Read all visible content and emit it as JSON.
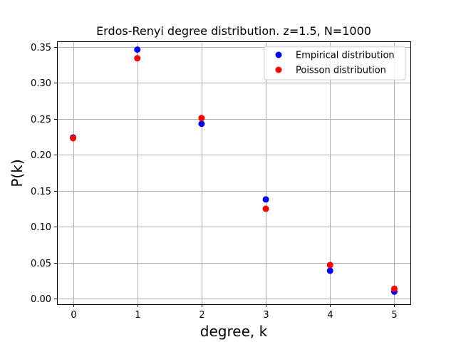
{
  "chart_data": {
    "type": "scatter",
    "title": "Erdos-Renyi degree distribution. z=1.5, N=1000",
    "xlabel": "degree, k",
    "ylabel": "P(k)",
    "x": [
      0,
      1,
      2,
      3,
      4,
      5
    ],
    "xlim": [
      -0.25,
      5.25
    ],
    "ylim": [
      -0.0075,
      0.3575
    ],
    "xticks": [
      0,
      1,
      2,
      3,
      4,
      5
    ],
    "yticks": [
      0.0,
      0.05,
      0.1,
      0.15,
      0.2,
      0.25,
      0.3,
      0.35
    ],
    "xtick_labels": [
      "0",
      "1",
      "2",
      "3",
      "4",
      "5"
    ],
    "ytick_labels": [
      "0.00",
      "0.05",
      "0.10",
      "0.15",
      "0.20",
      "0.25",
      "0.30",
      "0.35"
    ],
    "grid": true,
    "legend_position": "top-right",
    "series": [
      {
        "name": "Empirical distribution",
        "color": "#0000ff",
        "values": [
          0.224,
          0.346,
          0.243,
          0.138,
          0.039,
          0.01
        ]
      },
      {
        "name": "Poisson distribution",
        "color": "#ff0000",
        "values": [
          0.223,
          0.334,
          0.251,
          0.125,
          0.047,
          0.014
        ]
      }
    ]
  }
}
